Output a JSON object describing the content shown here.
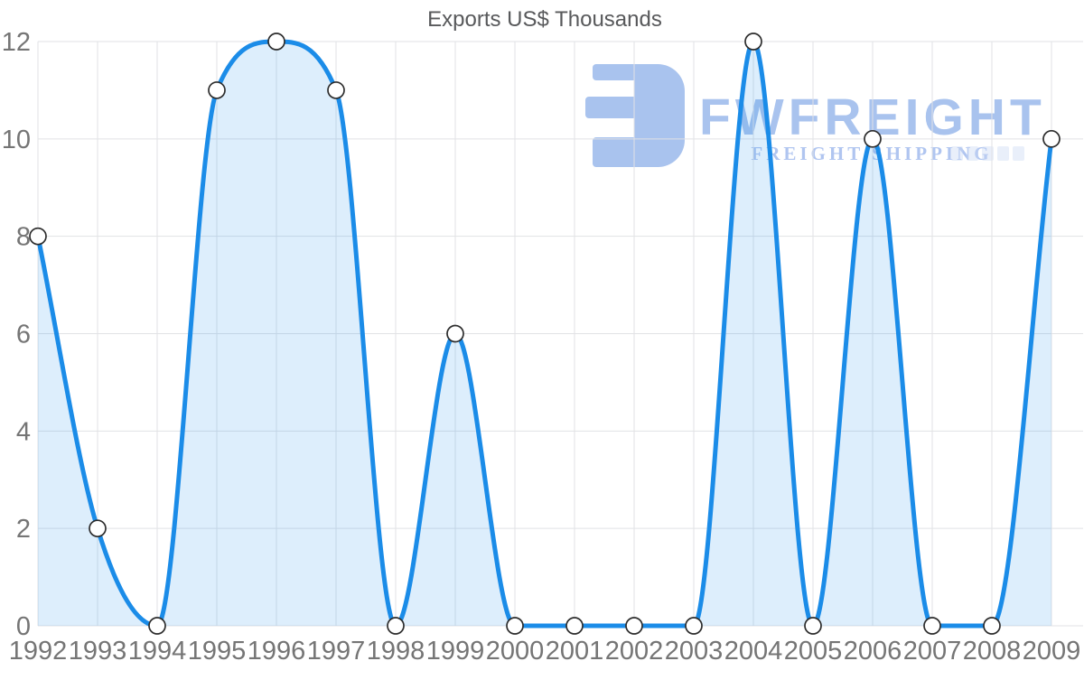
{
  "logo": {
    "brand": "FWFREIGHT",
    "tagline": "FREIGHT SHIPPING"
  },
  "colors": {
    "line": "#1b8ce8",
    "area_fill": "rgba(30, 139, 233, 0.15)",
    "marker_fill": "#ffffff",
    "marker_stroke": "#2d2d2d",
    "grid": "#e1e2e5",
    "tick_text": "#757575",
    "title_text": "#58595b",
    "logo_blue": "#a9c3ee"
  },
  "chart_data": {
    "type": "area",
    "title": "Exports US$ Thousands",
    "categories": [
      "1992",
      "1993",
      "1994",
      "1995",
      "1996",
      "1997",
      "1998",
      "1999",
      "2000",
      "2001",
      "2002",
      "2003",
      "2004",
      "2005",
      "2006",
      "2007",
      "2008",
      "2009"
    ],
    "values": [
      8,
      2,
      0,
      11,
      12,
      11,
      0,
      6,
      0,
      0,
      0,
      0,
      12,
      0,
      10,
      0,
      0,
      10
    ],
    "xlabel": "",
    "ylabel": "",
    "ylim": [
      0,
      12
    ],
    "ytick_step": 2,
    "grid": true,
    "legend": "none",
    "curve": "monotone",
    "marker": "circle"
  }
}
